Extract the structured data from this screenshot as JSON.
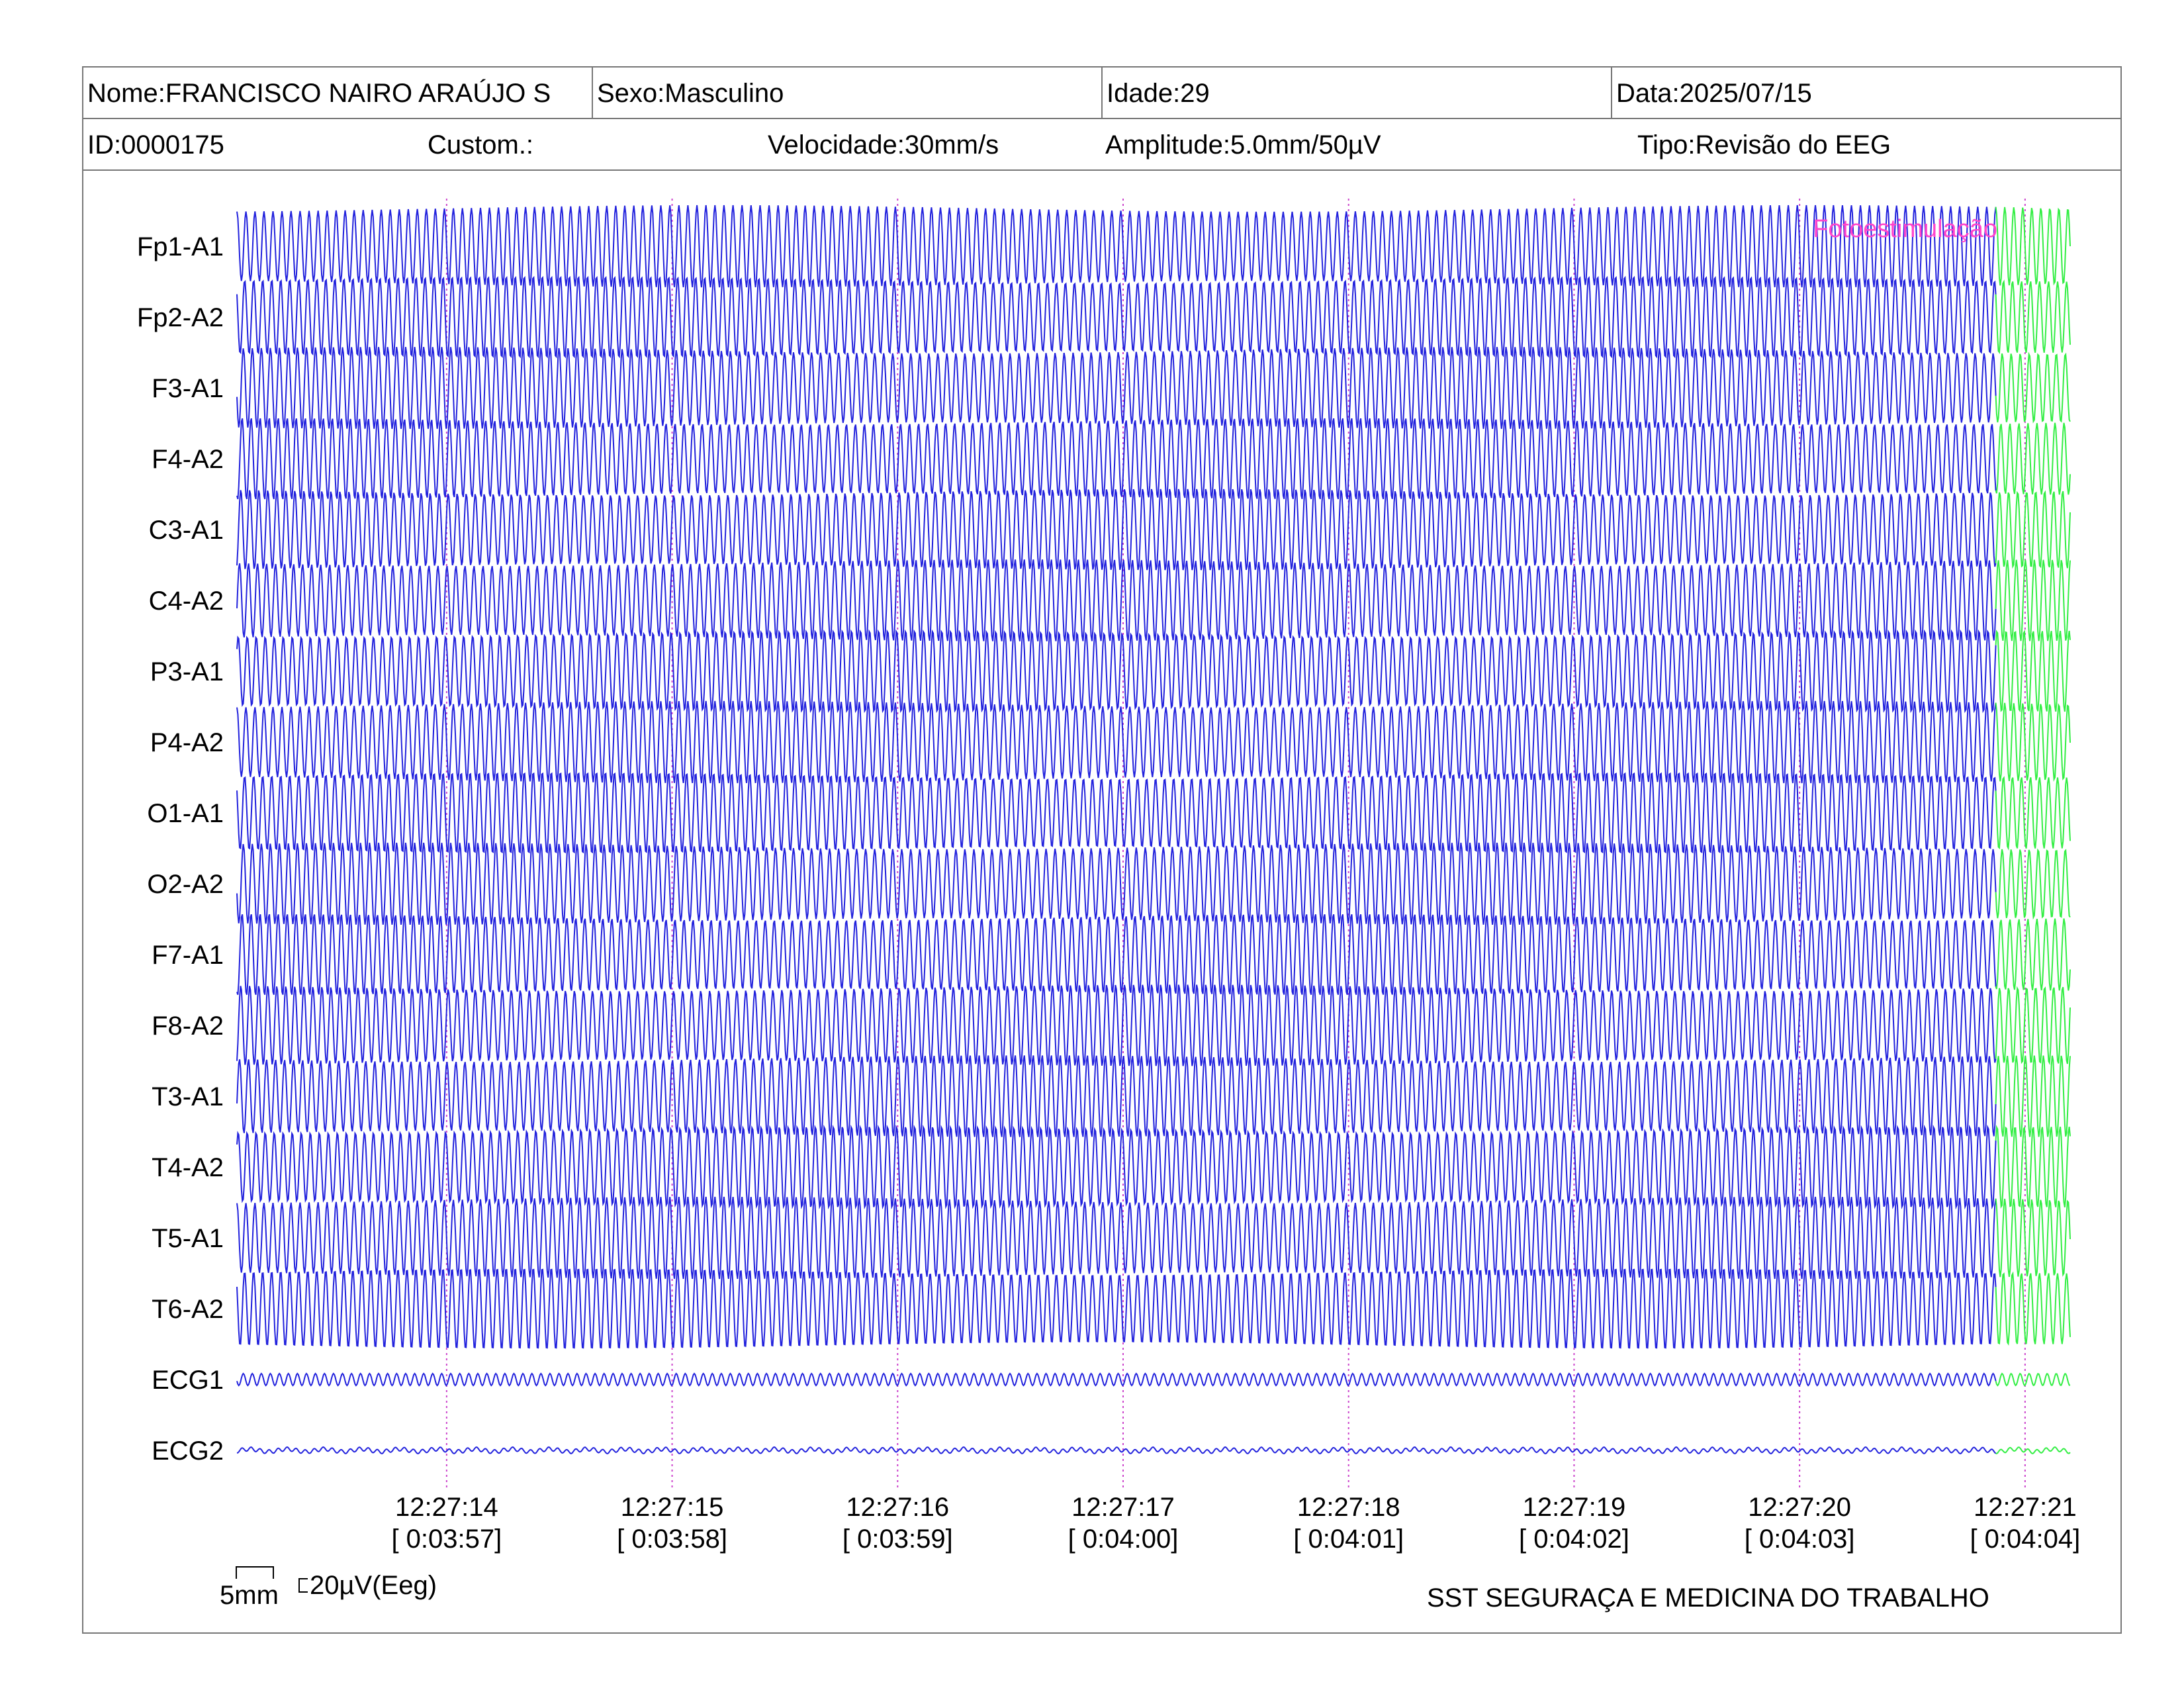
{
  "header": {
    "row1": {
      "name": "Nome:FRANCISCO NAIRO ARAÚJO S",
      "sex": "Sexo:Masculino",
      "age": "Idade:29",
      "date": "Data:2025/07/15"
    },
    "row2": {
      "id": "ID:0000175",
      "custom": "Custom.:",
      "speed": "Velocidade:30mm/s",
      "amplitude": "Amplitude:5.0mm/50µV",
      "type": "Tipo:Revisão do EEG"
    }
  },
  "annotation": "Fotoestimulação",
  "colors": {
    "trace": "#2222dd",
    "stim_trace": "#33ee44",
    "annotation": "#ff44cc",
    "time_marker": "#cc44cc",
    "border": "#777777"
  },
  "chart_data": {
    "type": "line",
    "channels": [
      "Fp1-A1",
      "Fp2-A2",
      "F3-A1",
      "F4-A2",
      "C3-A1",
      "C4-A2",
      "P3-A1",
      "P4-A2",
      "O1-A1",
      "O2-A2",
      "F7-A1",
      "F8-A2",
      "T3-A1",
      "T4-A2",
      "T5-A1",
      "T6-A2",
      "ECG1",
      "ECG2"
    ],
    "time_axis": {
      "clock": [
        "12:27:14",
        "12:27:15",
        "12:27:16",
        "12:27:17",
        "12:27:18",
        "12:27:19",
        "12:27:20",
        "12:27:21"
      ],
      "elapsed": [
        "[ 0:03:57]",
        "[ 0:03:58]",
        "[ 0:03:59]",
        "[ 0:04:00]",
        "[ 0:04:01]",
        "[ 0:04:02]",
        "[ 0:04:03]",
        "[ 0:04:04]"
      ]
    },
    "time_range_s": [
      -0.93,
      7.2
    ],
    "oscillation_hz": 25,
    "stimulation_start_s": 6.87
  },
  "scale_bar": {
    "length": "5mm",
    "amplitude": "20µV(Eeg)"
  },
  "footer": {
    "company": "SST SEGURAÇA E MEDICINA DO TRABALHO"
  }
}
